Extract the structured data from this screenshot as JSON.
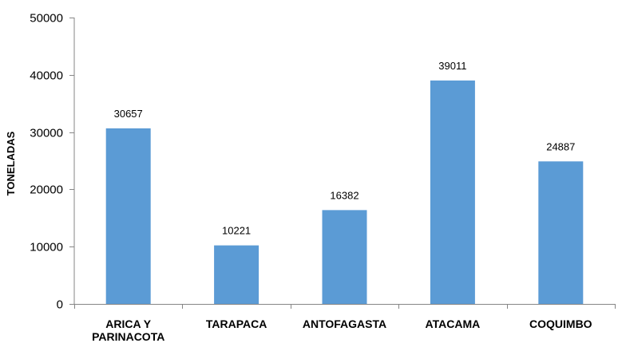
{
  "chart_data": {
    "type": "bar",
    "categories": [
      "ARICA Y PARINACOTA",
      "TARAPACA",
      "ANTOFAGASTA",
      "ATACAMA",
      "COQUIMBO"
    ],
    "category_lines": [
      [
        "ARICA Y",
        "PARINACOTA"
      ],
      [
        "TARAPACA"
      ],
      [
        "ANTOFAGASTA"
      ],
      [
        "ATACAMA"
      ],
      [
        "COQUIMBO"
      ]
    ],
    "values": [
      30657,
      10221,
      16382,
      39011,
      24887
    ],
    "data_labels": [
      "30657",
      "10221",
      "16382",
      "39011",
      "24887"
    ],
    "title": "",
    "xlabel": "",
    "ylabel": "TONELADAS",
    "ylim": [
      0,
      50000
    ],
    "yticks": [
      0,
      10000,
      20000,
      30000,
      40000,
      50000
    ],
    "ytick_labels": [
      "0",
      "10000",
      "20000",
      "30000",
      "40000",
      "50000"
    ],
    "grid": false,
    "legend": "none",
    "bar_color": "#5b9bd5",
    "axis_color": "#868686"
  }
}
